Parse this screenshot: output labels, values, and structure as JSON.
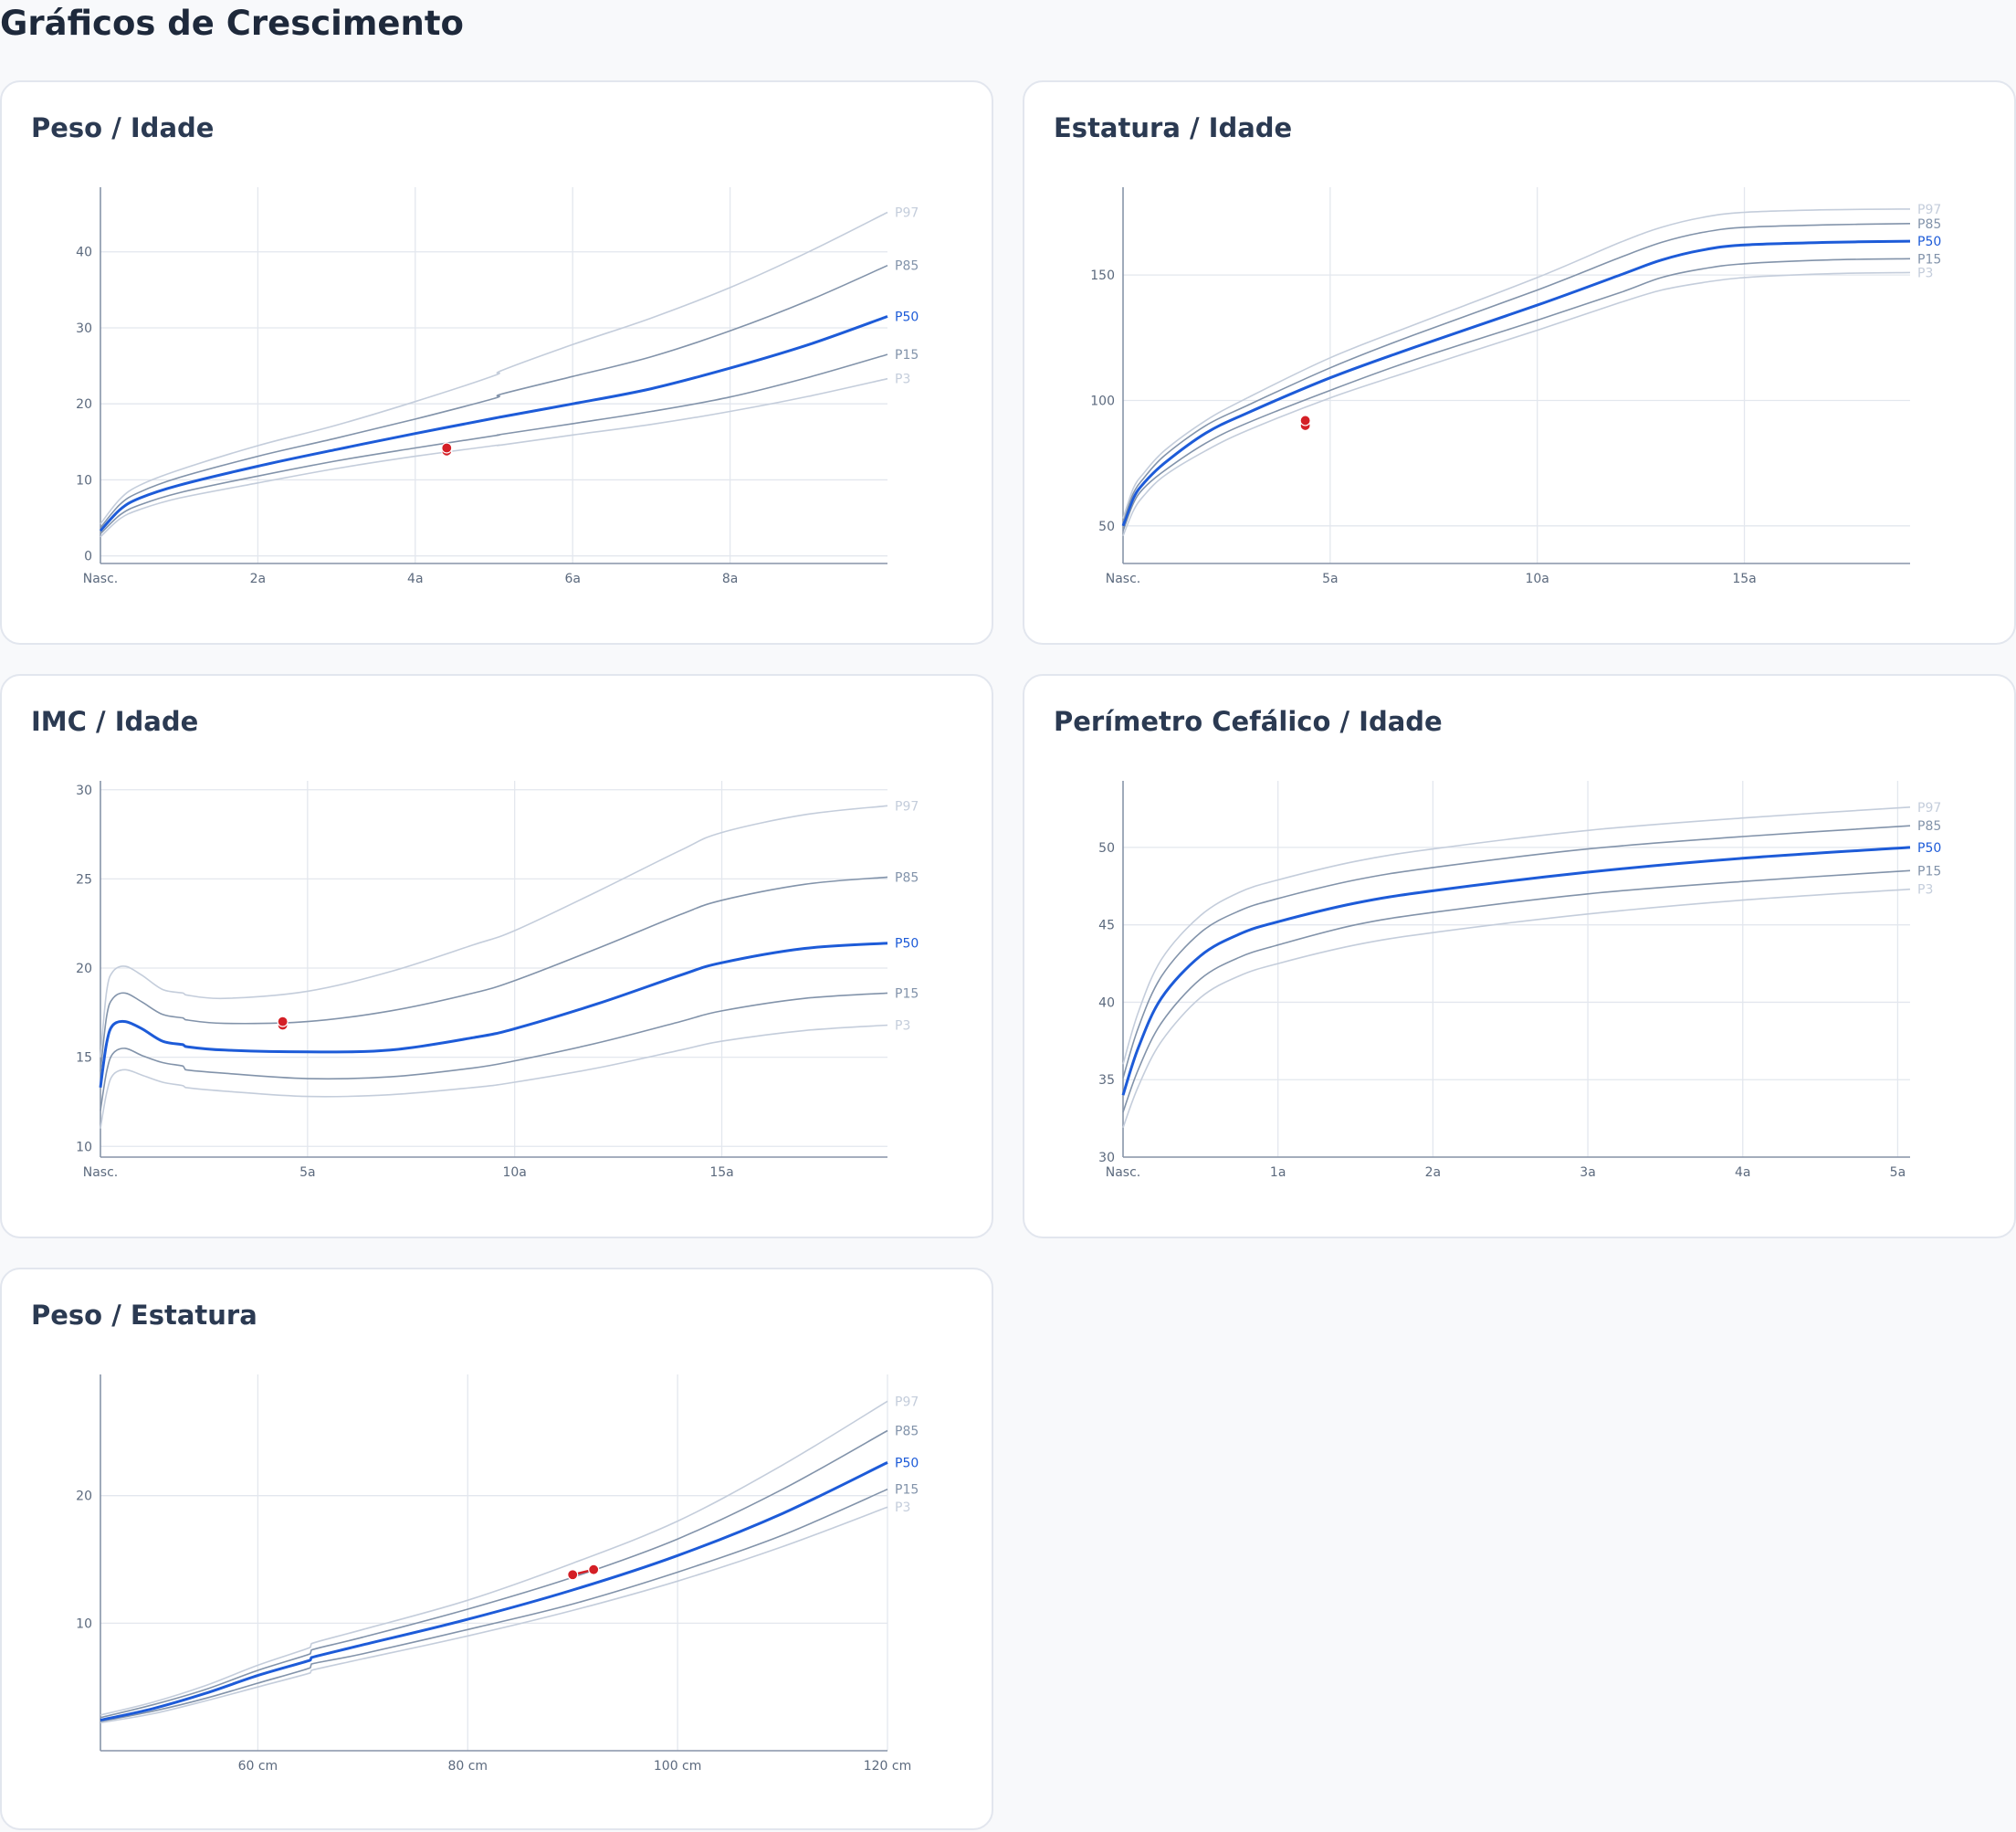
{
  "page": {
    "title": "Gráficos de Crescimento"
  },
  "colors": {
    "p50": "#1d5bd8",
    "p15_p85": "#8293aa",
    "p3_p97": "#c4cddb",
    "patient": "#d41f26",
    "grid": "#e3e7ee",
    "axis": "#8794a8",
    "tick_text": "#5c6a7e"
  },
  "chart_data": [
    {
      "id": "peso-idade",
      "type": "line",
      "title": "Peso / Idade",
      "x_ticks": [
        {
          "value": 0,
          "label": "Nasc."
        },
        {
          "value": 2,
          "label": "2a"
        },
        {
          "value": 4,
          "label": "4a"
        },
        {
          "value": 6,
          "label": "6a"
        },
        {
          "value": 8,
          "label": "8a"
        }
      ],
      "y_ticks": [
        {
          "value": 0,
          "label": "0"
        },
        {
          "value": 10,
          "label": "10"
        },
        {
          "value": 20,
          "label": "20"
        },
        {
          "value": 30,
          "label": "30"
        },
        {
          "value": 40,
          "label": "40"
        }
      ],
      "xlim": [
        0,
        10
      ],
      "ylim": [
        -1,
        48.5
      ],
      "grid": true,
      "series": [
        {
          "name": "P3",
          "x": [
            0,
            0.25,
            0.5,
            1,
            2,
            3,
            4,
            5,
            5.1,
            6,
            7,
            8,
            9,
            10
          ],
          "y": [
            2.5,
            4.9,
            6.1,
            7.6,
            9.6,
            11.5,
            13.1,
            14.5,
            14.6,
            15.9,
            17.3,
            19.0,
            21.0,
            23.3
          ]
        },
        {
          "name": "P15",
          "x": [
            0,
            0.25,
            0.5,
            1,
            2,
            3,
            4,
            5,
            5.1,
            6,
            7,
            8,
            9,
            10
          ],
          "y": [
            2.9,
            5.4,
            6.7,
            8.3,
            10.5,
            12.5,
            14.2,
            15.8,
            16.0,
            17.4,
            19.0,
            20.9,
            23.5,
            26.5
          ]
        },
        {
          "name": "P50",
          "x": [
            0,
            0.25,
            0.5,
            1,
            2,
            3,
            4,
            5,
            5.1,
            6,
            7,
            8,
            9,
            10
          ],
          "y": [
            3.3,
            6.1,
            7.6,
            9.3,
            11.8,
            14.0,
            16.1,
            18.1,
            18.3,
            20.0,
            22.0,
            24.7,
            27.8,
            31.5
          ]
        },
        {
          "name": "P85",
          "x": [
            0,
            0.25,
            0.5,
            1,
            2,
            3,
            4,
            5,
            5.1,
            6,
            7,
            8,
            9,
            10
          ],
          "y": [
            3.7,
            6.8,
            8.4,
            10.3,
            13.1,
            15.5,
            18.0,
            20.7,
            21.3,
            23.6,
            26.2,
            29.6,
            33.6,
            38.2
          ]
        },
        {
          "name": "P97",
          "x": [
            0,
            0.25,
            0.5,
            1,
            2,
            3,
            4,
            5,
            5.1,
            6,
            7,
            8,
            9,
            10
          ],
          "y": [
            4.2,
            7.5,
            9.3,
            11.3,
            14.5,
            17.2,
            20.3,
            23.7,
            24.4,
            27.8,
            31.3,
            35.3,
            40.0,
            45.2
          ]
        }
      ],
      "patient": {
        "x": [
          4.4,
          4.4
        ],
        "y": [
          13.8,
          14.2
        ]
      }
    },
    {
      "id": "estatura-idade",
      "type": "line",
      "title": "Estatura / Idade",
      "x_ticks": [
        {
          "value": 0,
          "label": "Nasc."
        },
        {
          "value": 5,
          "label": "5a"
        },
        {
          "value": 10,
          "label": "10a"
        },
        {
          "value": 15,
          "label": "15a"
        }
      ],
      "y_ticks": [
        {
          "value": 50,
          "label": "50"
        },
        {
          "value": 100,
          "label": "100"
        },
        {
          "value": 150,
          "label": "150"
        }
      ],
      "xlim": [
        0,
        19
      ],
      "ylim": [
        35,
        185
      ],
      "grid": true,
      "series": [
        {
          "name": "P3",
          "x": [
            0,
            0.25,
            0.5,
            1,
            2,
            3,
            5,
            7,
            10,
            12,
            13,
            14,
            15,
            17,
            19
          ],
          "y": [
            46,
            56,
            62,
            70,
            80,
            88,
            101,
            112,
            128,
            139,
            144,
            147,
            149,
            150.5,
            151
          ]
        },
        {
          "name": "P15",
          "x": [
            0,
            0.25,
            0.5,
            1,
            2,
            3,
            5,
            7,
            10,
            12,
            13,
            14,
            15,
            17,
            19
          ],
          "y": [
            48,
            59,
            65,
            72,
            83,
            91,
            104,
            116,
            132,
            143,
            149,
            152.5,
            154.5,
            156,
            156.5
          ]
        },
        {
          "name": "P50",
          "x": [
            0,
            0.25,
            0.5,
            1,
            2,
            3,
            5,
            7,
            10,
            12,
            13,
            14,
            15,
            17,
            19
          ],
          "y": [
            50,
            61,
            67,
            75,
            87,
            95,
            109,
            121,
            138,
            150,
            156,
            160,
            162,
            163,
            163.5
          ]
        },
        {
          "name": "P85",
          "x": [
            0,
            0.25,
            0.5,
            1,
            2,
            3,
            5,
            7,
            10,
            12,
            13,
            14,
            15,
            17,
            19
          ],
          "y": [
            52,
            63,
            69,
            78,
            90,
            98,
            113,
            126,
            144,
            157,
            163,
            167,
            169,
            170,
            170.5
          ]
        },
        {
          "name": "P97",
          "x": [
            0,
            0.25,
            0.5,
            1,
            2,
            3,
            5,
            7,
            10,
            12,
            13,
            14,
            15,
            17,
            19
          ],
          "y": [
            53,
            65,
            71,
            80,
            92,
            101,
            117,
            130,
            149,
            163,
            169,
            173,
            175,
            176,
            176.3
          ]
        }
      ],
      "patient": {
        "x": [
          4.4,
          4.4
        ],
        "y": [
          90,
          92
        ]
      }
    },
    {
      "id": "imc-idade",
      "type": "line",
      "title": "IMC / Idade",
      "x_ticks": [
        {
          "value": 0,
          "label": "Nasc."
        },
        {
          "value": 5,
          "label": "5a"
        },
        {
          "value": 10,
          "label": "10a"
        },
        {
          "value": 15,
          "label": "15a"
        }
      ],
      "y_ticks": [
        {
          "value": 10,
          "label": "10"
        },
        {
          "value": 15,
          "label": "15"
        },
        {
          "value": 20,
          "label": "20"
        },
        {
          "value": 25,
          "label": "25"
        },
        {
          "value": 30,
          "label": "30"
        }
      ],
      "xlim": [
        0,
        19
      ],
      "ylim": [
        9.4,
        30.5
      ],
      "grid": true,
      "series": [
        {
          "name": "P3",
          "x": [
            0,
            0.15,
            0.3,
            0.6,
            1,
            1.5,
            2,
            2.05,
            3,
            5,
            7,
            9,
            10,
            12,
            14,
            15,
            17,
            19
          ],
          "y": [
            11.0,
            13.0,
            14.0,
            14.3,
            14.0,
            13.6,
            13.4,
            13.3,
            13.1,
            12.8,
            12.9,
            13.3,
            13.6,
            14.4,
            15.4,
            15.9,
            16.5,
            16.8
          ]
        },
        {
          "name": "P15",
          "x": [
            0,
            0.15,
            0.3,
            0.6,
            1,
            1.5,
            2,
            2.05,
            3,
            5,
            7,
            9,
            10,
            12,
            14,
            15,
            17,
            19
          ],
          "y": [
            12.0,
            14.2,
            15.2,
            15.5,
            15.1,
            14.7,
            14.5,
            14.3,
            14.1,
            13.8,
            13.9,
            14.4,
            14.8,
            15.8,
            17.0,
            17.6,
            18.3,
            18.6
          ]
        },
        {
          "name": "P50",
          "x": [
            0,
            0.15,
            0.3,
            0.6,
            1,
            1.5,
            2,
            2.05,
            3,
            5,
            7,
            9,
            10,
            12,
            14,
            15,
            17,
            19
          ],
          "y": [
            13.3,
            15.8,
            16.8,
            17.0,
            16.6,
            15.9,
            15.7,
            15.6,
            15.4,
            15.3,
            15.4,
            16.1,
            16.6,
            18.0,
            19.6,
            20.3,
            21.1,
            21.4
          ]
        },
        {
          "name": "P85",
          "x": [
            0,
            0.15,
            0.3,
            0.6,
            1,
            1.5,
            2,
            2.05,
            3,
            5,
            7,
            9,
            10,
            12,
            14,
            15,
            17,
            19
          ],
          "y": [
            14.2,
            17.3,
            18.3,
            18.6,
            18.1,
            17.4,
            17.2,
            17.1,
            16.9,
            17.0,
            17.6,
            18.6,
            19.3,
            21.1,
            23.0,
            23.8,
            24.7,
            25.1
          ]
        },
        {
          "name": "P97",
          "x": [
            0,
            0.15,
            0.3,
            0.6,
            1,
            1.5,
            2,
            2.05,
            3,
            5,
            7,
            9,
            10,
            12,
            14,
            15,
            17,
            19
          ],
          "y": [
            15.0,
            18.7,
            19.8,
            20.1,
            19.6,
            18.8,
            18.6,
            18.5,
            18.3,
            18.7,
            19.8,
            21.3,
            22.1,
            24.3,
            26.6,
            27.6,
            28.6,
            29.1
          ]
        }
      ],
      "patient": {
        "x": [
          4.4,
          4.4
        ],
        "y": [
          16.8,
          17.0
        ]
      }
    },
    {
      "id": "perimetro-cefalico-idade",
      "type": "line",
      "title": "Perímetro Cefálico / Idade",
      "x_ticks": [
        {
          "value": 0,
          "label": "Nasc."
        },
        {
          "value": 1,
          "label": "1a"
        },
        {
          "value": 2,
          "label": "2a"
        },
        {
          "value": 3,
          "label": "3a"
        },
        {
          "value": 4,
          "label": "4a"
        },
        {
          "value": 5,
          "label": "5a"
        }
      ],
      "y_ticks": [
        {
          "value": 30,
          "label": "30"
        },
        {
          "value": 35,
          "label": "35"
        },
        {
          "value": 40,
          "label": "40"
        },
        {
          "value": 45,
          "label": "45"
        },
        {
          "value": 50,
          "label": "50"
        }
      ],
      "xlim": [
        0,
        5.08
      ],
      "ylim": [
        30,
        54.3
      ],
      "grid": true,
      "series": [
        {
          "name": "P3",
          "x": [
            0,
            0.1,
            0.25,
            0.5,
            0.75,
            1,
            1.5,
            2,
            3,
            4,
            5.08
          ],
          "y": [
            31.9,
            34.6,
            37.5,
            40.3,
            41.7,
            42.5,
            43.7,
            44.5,
            45.7,
            46.6,
            47.3
          ]
        },
        {
          "name": "P15",
          "x": [
            0,
            0.1,
            0.25,
            0.5,
            0.75,
            1,
            1.5,
            2,
            3,
            4,
            5.08
          ],
          "y": [
            32.9,
            35.7,
            38.7,
            41.5,
            42.9,
            43.7,
            45.0,
            45.8,
            47.0,
            47.8,
            48.5
          ]
        },
        {
          "name": "P50",
          "x": [
            0,
            0.1,
            0.25,
            0.5,
            0.75,
            1,
            1.5,
            2,
            3,
            4,
            5.08
          ],
          "y": [
            34.0,
            37.1,
            40.3,
            43.0,
            44.4,
            45.2,
            46.4,
            47.2,
            48.4,
            49.3,
            50.0
          ]
        },
        {
          "name": "P85",
          "x": [
            0,
            0.1,
            0.25,
            0.5,
            0.75,
            1,
            1.5,
            2,
            3,
            4,
            5.08
          ],
          "y": [
            35.1,
            38.4,
            41.7,
            44.5,
            45.9,
            46.7,
            47.9,
            48.7,
            49.9,
            50.7,
            51.4
          ]
        },
        {
          "name": "P97",
          "x": [
            0,
            0.1,
            0.25,
            0.5,
            0.75,
            1,
            1.5,
            2,
            3,
            4,
            5.08
          ],
          "y": [
            36.0,
            39.4,
            42.8,
            45.6,
            47.1,
            47.9,
            49.1,
            49.9,
            51.1,
            51.9,
            52.6
          ]
        }
      ]
    },
    {
      "id": "peso-estatura",
      "type": "line",
      "title": "Peso / Estatura",
      "x_ticks": [
        {
          "value": 60,
          "label": "60 cm"
        },
        {
          "value": 80,
          "label": "80 cm"
        },
        {
          "value": 100,
          "label": "100 cm"
        },
        {
          "value": 120,
          "label": "120 cm"
        }
      ],
      "y_ticks": [
        {
          "value": 10,
          "label": "10"
        },
        {
          "value": 20,
          "label": "20"
        }
      ],
      "xlim": [
        45,
        120
      ],
      "ylim": [
        0,
        29.5
      ],
      "grid": true,
      "series": [
        {
          "name": "P3",
          "x": [
            45,
            50,
            55,
            60,
            65,
            65.1,
            70,
            80,
            90,
            100,
            110,
            120
          ],
          "y": [
            2.2,
            2.9,
            3.9,
            5.0,
            6.1,
            6.3,
            7.2,
            9.0,
            11.0,
            13.3,
            16.0,
            19.1
          ]
        },
        {
          "name": "P15",
          "x": [
            45,
            50,
            55,
            60,
            65,
            65.1,
            70,
            80,
            90,
            100,
            110,
            120
          ],
          "y": [
            2.3,
            3.1,
            4.1,
            5.3,
            6.5,
            6.8,
            7.6,
            9.5,
            11.5,
            14.0,
            16.9,
            20.5
          ]
        },
        {
          "name": "P50",
          "x": [
            45,
            50,
            55,
            60,
            65,
            65.1,
            70,
            80,
            90,
            100,
            110,
            120
          ],
          "y": [
            2.4,
            3.3,
            4.5,
            5.9,
            7.1,
            7.3,
            8.3,
            10.3,
            12.6,
            15.3,
            18.6,
            22.6
          ]
        },
        {
          "name": "P85",
          "x": [
            45,
            50,
            55,
            60,
            65,
            65.1,
            70,
            80,
            90,
            100,
            110,
            120
          ],
          "y": [
            2.6,
            3.6,
            4.8,
            6.3,
            7.6,
            7.9,
            8.9,
            11.1,
            13.6,
            16.6,
            20.5,
            25.1
          ]
        },
        {
          "name": "P97",
          "x": [
            45,
            50,
            55,
            60,
            65,
            65.1,
            70,
            80,
            90,
            100,
            110,
            120
          ],
          "y": [
            2.8,
            3.8,
            5.1,
            6.7,
            8.1,
            8.4,
            9.5,
            11.8,
            14.7,
            18.0,
            22.4,
            27.4
          ]
        }
      ],
      "patient": {
        "x": [
          90,
          92
        ],
        "y": [
          13.8,
          14.2
        ]
      }
    }
  ]
}
